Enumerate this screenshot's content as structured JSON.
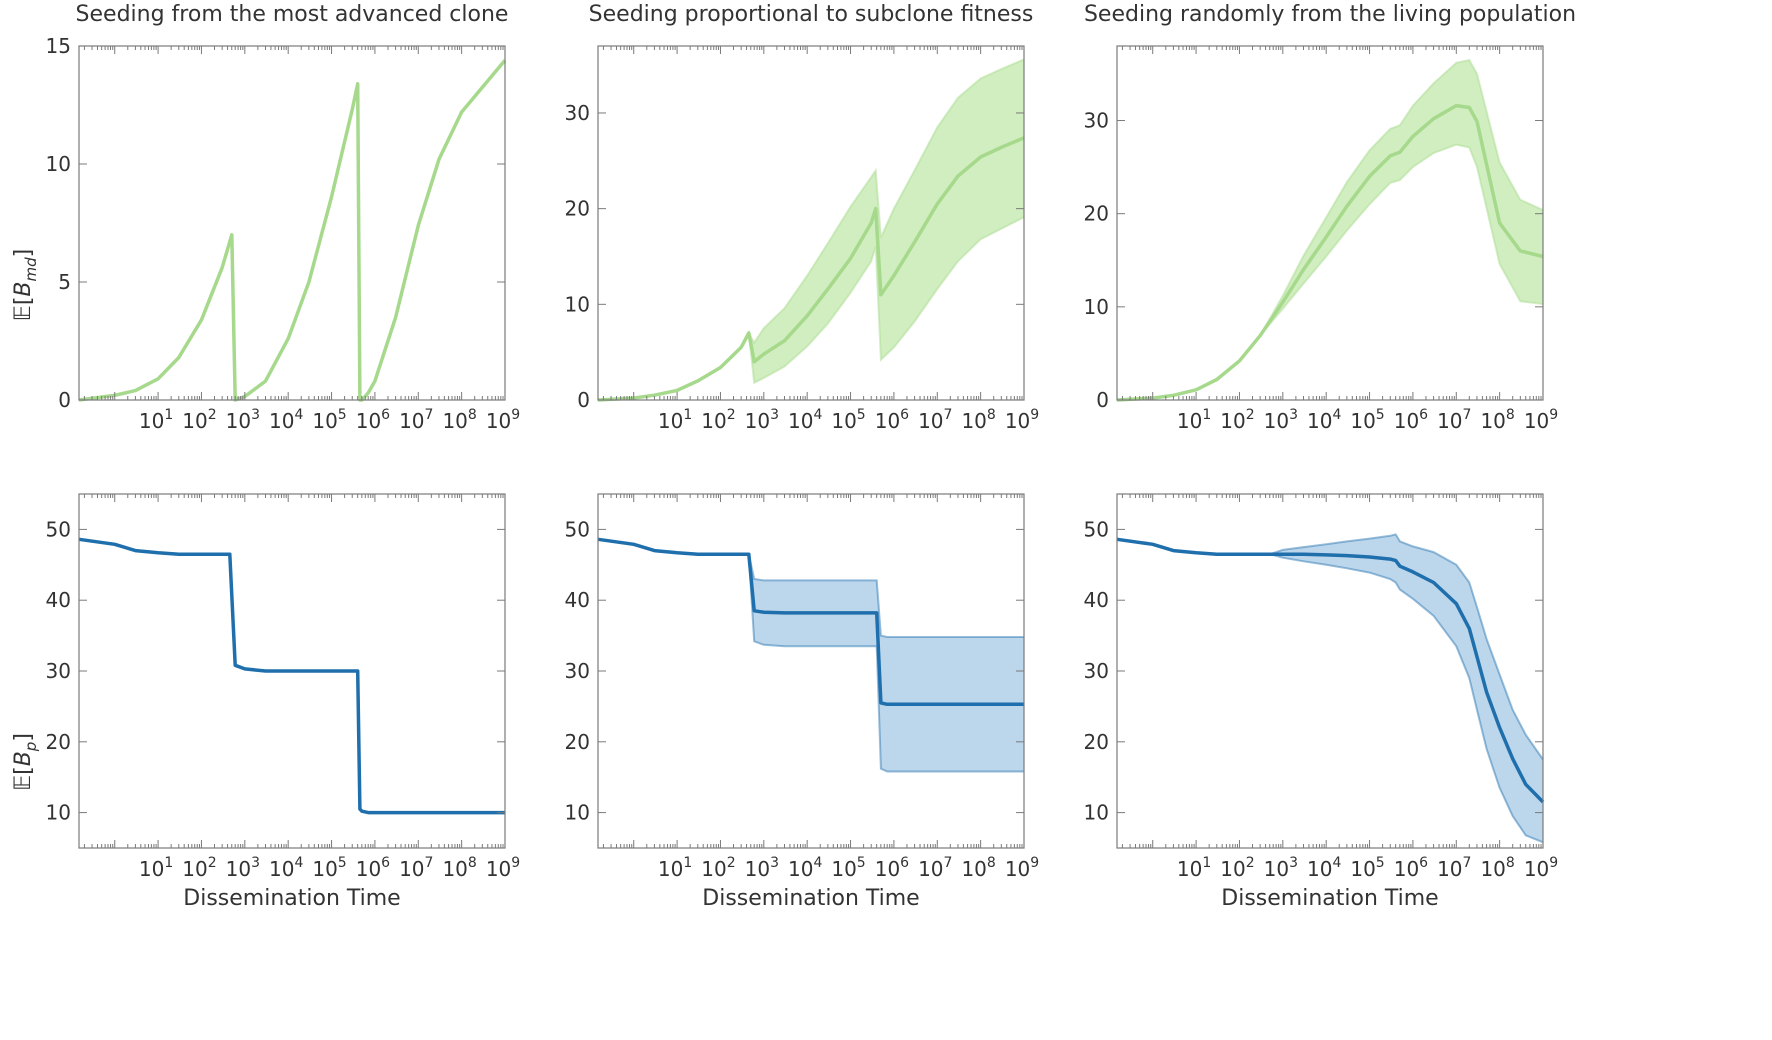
{
  "figure": {
    "row_ylabels": [
      "E[B_md]",
      "E[B_p]"
    ],
    "xlabel": "Dissemination Time"
  },
  "chart_data": [
    {
      "id": "top-advanced",
      "type": "line",
      "title": "Seeding from the most advanced clone",
      "xlabel": "",
      "ylabel": "E[B_md]",
      "xscale": "log",
      "xlim": [
        0.15,
        1000000000.0
      ],
      "ylim": [
        0,
        15
      ],
      "yticks": [
        0,
        5,
        10,
        15
      ],
      "band": false,
      "color": "#a6d98c",
      "band_color": "#c8ebb4",
      "series": [
        {
          "x": [
            0.15,
            1,
            3,
            10,
            30,
            100,
            300,
            500,
            600,
            1000,
            3000,
            10000,
            30000,
            100000,
            300000,
            400000,
            450000,
            500000,
            700000,
            1000000,
            3000000,
            10000000,
            30000000,
            100000000,
            1000000000
          ],
          "y": [
            0,
            0.2,
            0.4,
            0.9,
            1.8,
            3.4,
            5.6,
            7.0,
            0,
            0.15,
            0.8,
            2.6,
            5.0,
            8.6,
            12.3,
            13.4,
            0,
            0,
            0.3,
            0.8,
            3.5,
            7.4,
            10.2,
            12.2,
            14.4
          ]
        }
      ]
    },
    {
      "id": "top-fitness",
      "type": "line",
      "title": "Seeding proportional to subclone fitness",
      "xlabel": "",
      "ylabel": "",
      "xscale": "log",
      "xlim": [
        0.15,
        1000000000.0
      ],
      "ylim": [
        0,
        37
      ],
      "yticks": [
        0,
        10,
        20,
        30
      ],
      "band": true,
      "color": "#a6d98c",
      "band_color": "#c8ebb4",
      "series": [
        {
          "x": [
            0.15,
            1,
            3,
            10,
            30,
            100,
            300,
            450,
            600,
            1000,
            3000,
            10000,
            30000,
            100000,
            300000,
            380000,
            500000,
            1000000,
            3000000,
            10000000,
            30000000,
            100000000,
            300000000,
            1000000000
          ],
          "y": [
            0,
            0.2,
            0.5,
            1.0,
            2.0,
            3.4,
            5.5,
            7.0,
            4.0,
            4.8,
            6.2,
            8.8,
            11.6,
            14.8,
            18.5,
            20.0,
            11.0,
            13.0,
            16.5,
            20.5,
            23.4,
            25.4,
            26.4,
            27.4
          ],
          "lower": [
            0,
            0.2,
            0.5,
            1.0,
            2.0,
            3.4,
            5.5,
            7.0,
            1.8,
            2.3,
            3.5,
            5.6,
            8.0,
            11.2,
            14.5,
            16.0,
            4.2,
            5.5,
            8.2,
            11.6,
            14.5,
            16.8,
            17.9,
            19.1
          ],
          "upper": [
            0,
            0.2,
            0.5,
            1.0,
            2.0,
            3.4,
            5.5,
            7.0,
            6.0,
            7.5,
            9.6,
            13.0,
            16.4,
            20.2,
            23.3,
            24.0,
            17.0,
            20.0,
            24.0,
            28.5,
            31.6,
            33.6,
            34.6,
            35.6
          ]
        }
      ]
    },
    {
      "id": "top-random",
      "type": "line",
      "title": "Seeding randomly from the living population",
      "xlabel": "",
      "ylabel": "",
      "xscale": "log",
      "xlim": [
        0.15,
        1000000000.0
      ],
      "ylim": [
        0,
        38
      ],
      "yticks": [
        0,
        10,
        20,
        30
      ],
      "band": true,
      "color": "#a6d98c",
      "band_color": "#c8ebb4",
      "series": [
        {
          "x": [
            0.15,
            1,
            3,
            10,
            30,
            100,
            300,
            1000,
            3000,
            10000,
            30000,
            100000,
            300000,
            500000,
            1000000,
            3000000,
            10000000,
            20000000,
            30000000,
            100000000,
            300000000,
            1000000000
          ],
          "y": [
            0,
            0.2,
            0.5,
            1.1,
            2.2,
            4.2,
            6.9,
            10.5,
            14.0,
            17.5,
            20.8,
            24.0,
            26.2,
            26.6,
            28.3,
            30.2,
            31.6,
            31.4,
            29.9,
            19.0,
            16.0,
            15.4
          ],
          "lower": [
            0,
            0.2,
            0.5,
            1.1,
            2.2,
            4.2,
            6.9,
            9.8,
            12.5,
            15.4,
            18.2,
            21.0,
            23.3,
            23.6,
            25.0,
            26.5,
            27.4,
            27.1,
            25.0,
            14.6,
            10.6,
            10.3
          ],
          "upper": [
            0,
            0.2,
            0.5,
            1.1,
            2.2,
            4.2,
            6.9,
            11.2,
            15.5,
            19.6,
            23.4,
            26.8,
            29.1,
            29.5,
            31.6,
            34.0,
            36.2,
            36.5,
            35.0,
            25.5,
            21.5,
            20.4
          ]
        }
      ]
    },
    {
      "id": "bottom-advanced",
      "type": "line",
      "title": "",
      "xlabel": "Dissemination Time",
      "ylabel": "E[B_p]",
      "xscale": "log",
      "xlim": [
        0.15,
        1000000000.0
      ],
      "ylim": [
        5,
        55
      ],
      "yticks": [
        10,
        20,
        30,
        40,
        50
      ],
      "band": false,
      "color": "#1f6fad",
      "band_color": "#b0cfe7",
      "series": [
        {
          "x": [
            0.15,
            1,
            3,
            10,
            30,
            100,
            300,
            450,
            600,
            1000,
            3000,
            10000,
            30000,
            100000,
            300000,
            400000,
            450000,
            500000,
            700000,
            1000000,
            3000000,
            10000000,
            100000000,
            1000000000
          ],
          "y": [
            48.6,
            47.9,
            47.0,
            46.7,
            46.5,
            46.5,
            46.5,
            46.5,
            30.8,
            30.3,
            30.0,
            30.0,
            30.0,
            30.0,
            30.0,
            30.0,
            10.5,
            10.2,
            10.0,
            10.0,
            10.0,
            10.0,
            10.0,
            10.0
          ]
        }
      ]
    },
    {
      "id": "bottom-fitness",
      "type": "line",
      "title": "",
      "xlabel": "Dissemination Time",
      "ylabel": "",
      "xscale": "log",
      "xlim": [
        0.15,
        1000000000.0
      ],
      "ylim": [
        5,
        55
      ],
      "yticks": [
        10,
        20,
        30,
        40,
        50
      ],
      "band": true,
      "color": "#1f6fad",
      "band_color": "#b0cfe7",
      "series": [
        {
          "x": [
            0.15,
            1,
            3,
            10,
            30,
            100,
            300,
            450,
            600,
            1000,
            3000,
            10000,
            30000,
            100000,
            300000,
            400000,
            500000,
            700000,
            1000000,
            10000000,
            100000000,
            1000000000
          ],
          "y": [
            48.6,
            47.9,
            47.0,
            46.7,
            46.5,
            46.5,
            46.5,
            46.5,
            38.5,
            38.3,
            38.2,
            38.2,
            38.2,
            38.2,
            38.2,
            38.2,
            25.5,
            25.3,
            25.3,
            25.3,
            25.3,
            25.3
          ],
          "lower": [
            48.6,
            47.9,
            47.0,
            46.7,
            46.5,
            46.5,
            46.5,
            46.5,
            34.2,
            33.7,
            33.5,
            33.5,
            33.5,
            33.5,
            33.5,
            33.5,
            16.2,
            15.8,
            15.8,
            15.8,
            15.8,
            15.8
          ],
          "upper": [
            48.6,
            47.9,
            47.0,
            46.7,
            46.5,
            46.5,
            46.5,
            46.5,
            43.0,
            42.8,
            42.8,
            42.8,
            42.8,
            42.8,
            42.8,
            42.8,
            35.0,
            34.8,
            34.8,
            34.8,
            34.8,
            34.8
          ]
        }
      ]
    },
    {
      "id": "bottom-random",
      "type": "line",
      "title": "",
      "xlabel": "Dissemination Time",
      "ylabel": "",
      "xscale": "log",
      "xlim": [
        0.15,
        1000000000.0
      ],
      "ylim": [
        5,
        55
      ],
      "yticks": [
        10,
        20,
        30,
        40,
        50
      ],
      "band": true,
      "color": "#1f6fad",
      "band_color": "#b0cfe7",
      "series": [
        {
          "x": [
            0.15,
            1,
            3,
            10,
            30,
            100,
            300,
            500,
            1000,
            3000,
            10000,
            30000,
            100000,
            300000,
            400000,
            500000,
            1000000,
            3000000,
            10000000,
            20000000,
            30000000,
            50000000,
            100000000,
            200000000,
            400000000,
            1000000000
          ],
          "y": [
            48.6,
            47.9,
            47.0,
            46.7,
            46.5,
            46.5,
            46.5,
            46.5,
            46.5,
            46.5,
            46.4,
            46.3,
            46.1,
            45.8,
            45.6,
            44.8,
            44.0,
            42.5,
            39.5,
            36.0,
            32.0,
            27.0,
            22.0,
            17.6,
            14.0,
            11.5
          ],
          "lower": [
            48.6,
            47.9,
            47.0,
            46.7,
            46.5,
            46.5,
            46.5,
            46.5,
            46.0,
            45.5,
            45.0,
            44.5,
            43.9,
            43.0,
            42.5,
            41.5,
            40.2,
            37.8,
            33.5,
            29.0,
            24.5,
            19.0,
            13.5,
            9.5,
            6.8,
            5.8
          ],
          "upper": [
            48.6,
            47.9,
            47.0,
            46.7,
            46.5,
            46.5,
            46.5,
            46.5,
            47.1,
            47.5,
            47.9,
            48.3,
            48.7,
            49.1,
            49.3,
            48.3,
            47.6,
            46.8,
            45.0,
            42.5,
            39.0,
            34.5,
            29.5,
            24.5,
            21.0,
            17.5
          ]
        }
      ]
    }
  ]
}
